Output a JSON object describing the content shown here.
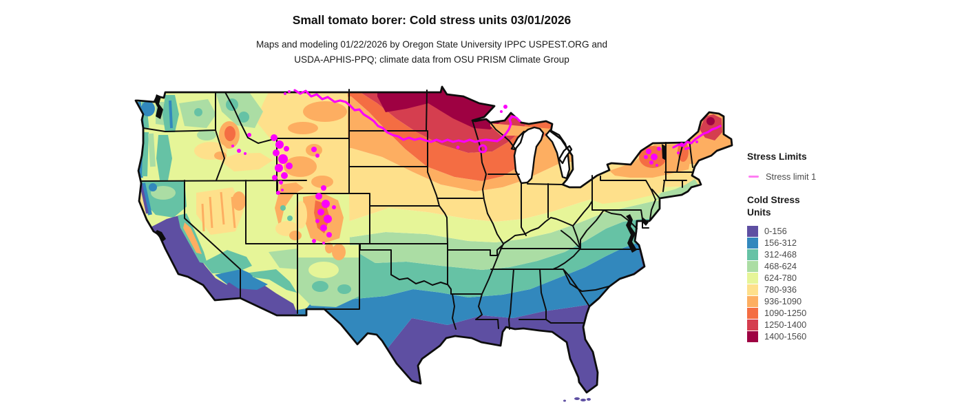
{
  "title": "Small tomato borer: Cold stress units 03/01/2026",
  "subtitle_line1": "Maps and modeling 01/22/2026 by Oregon State University IPPC USPEST.ORG and",
  "subtitle_line2": "USDA-APHIS-PPQ; climate data from OSU PRISM Climate Group",
  "legend": {
    "stress_limits_title": "Stress Limits",
    "stress_limit_item": {
      "label": "Stress limit 1",
      "color": "#ff7df2"
    },
    "cold_stress_title": "Cold Stress Units",
    "bins": [
      {
        "range": "0-156",
        "color": "#5e4fa2"
      },
      {
        "range": "156-312",
        "color": "#3288bd"
      },
      {
        "range": "312-468",
        "color": "#66c2a5"
      },
      {
        "range": "468-624",
        "color": "#abdda4"
      },
      {
        "range": "624-780",
        "color": "#e6f598"
      },
      {
        "range": "780-936",
        "color": "#fee08b"
      },
      {
        "range": "936-1090",
        "color": "#fdae61"
      },
      {
        "range": "1090-1250",
        "color": "#f46d43"
      },
      {
        "range": "1250-1400",
        "color": "#d53e4f"
      },
      {
        "range": "1400-1560",
        "color": "#9e0142"
      }
    ]
  },
  "map": {
    "region": "Continental United States",
    "stress_line_color": "#fb00fb",
    "border_color": "#0d0d0d",
    "water_color": "#0d0d0d",
    "background_color": "#ffffff"
  }
}
